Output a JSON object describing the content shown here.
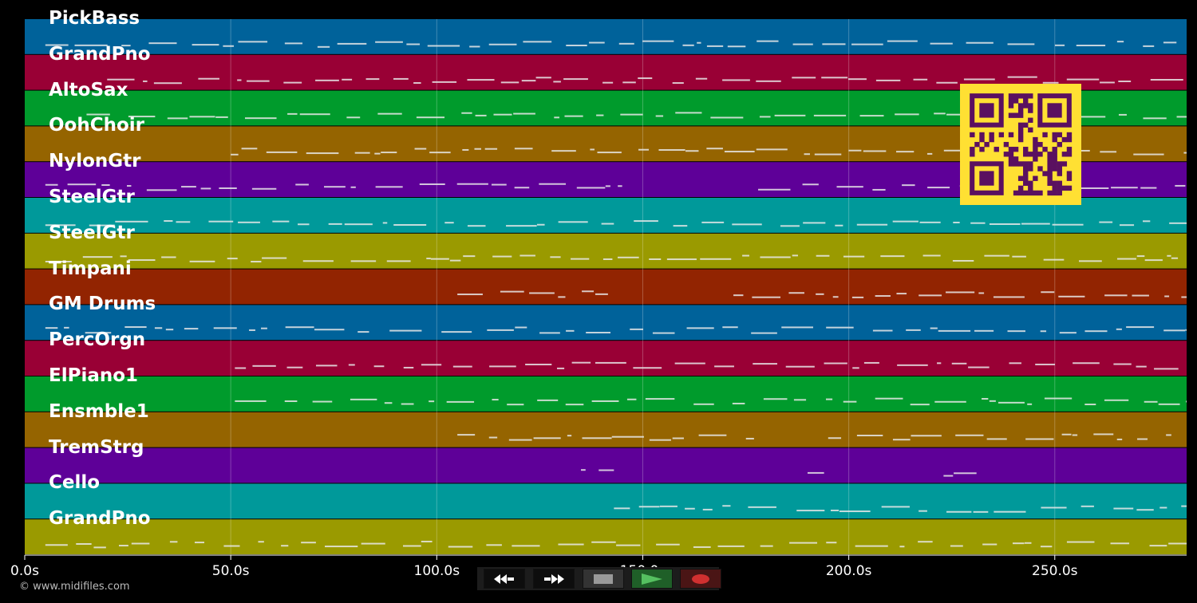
{
  "tracks": [
    {
      "name": "PickBass",
      "color": "#00629a"
    },
    {
      "name": "GrandPno",
      "color": "#990035"
    },
    {
      "name": "AltoSax",
      "color": "#009b2c"
    },
    {
      "name": "OohChoir",
      "color": "#956400"
    },
    {
      "name": "NylonGtr",
      "color": "#5e0098"
    },
    {
      "name": "SteelGtr",
      "color": "#00999a"
    },
    {
      "name": "SteelGtr",
      "color": "#9a9a00"
    },
    {
      "name": "Timpani",
      "color": "#922401"
    },
    {
      "name": "GM Drums",
      "color": "#00629a"
    },
    {
      "name": "PercOrgn",
      "color": "#990035"
    },
    {
      "name": "ElPiano1",
      "color": "#009b2c"
    },
    {
      "name": "Ensmble1",
      "color": "#956400"
    },
    {
      "name": "TremStrg",
      "color": "#5e0098"
    },
    {
      "name": "Cello",
      "color": "#00999a"
    },
    {
      "name": "GrandPno",
      "color": "#9a9a00"
    }
  ],
  "time_axis": {
    "max_seconds": 282,
    "ticks": [
      {
        "value": 0,
        "label": "0.0s"
      },
      {
        "value": 50,
        "label": "50.0s"
      },
      {
        "value": 100,
        "label": "100.0s"
      },
      {
        "value": 150,
        "label": "150.0s"
      },
      {
        "value": 200,
        "label": "200.0s"
      },
      {
        "value": 250,
        "label": "250.0s"
      }
    ]
  },
  "copyright": "© www.midifiles.com",
  "transport": {
    "rewind_icon": "rewind-icon",
    "forward_icon": "fast-forward-icon",
    "stop_icon": "stop-icon",
    "play_icon": "play-icon",
    "record_icon": "record-icon"
  },
  "qr_code_color": "#ffe033",
  "note_color": "#e8e8e8"
}
